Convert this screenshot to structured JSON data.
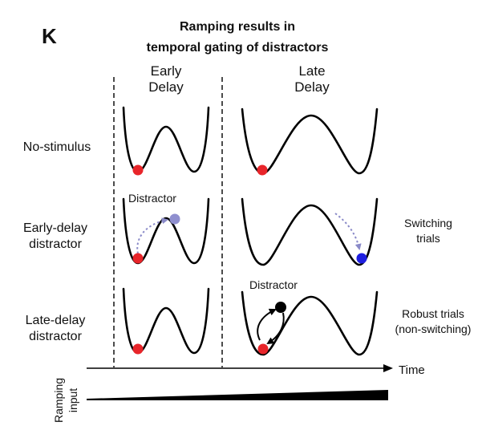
{
  "panel_letter": "K",
  "title": {
    "line1": "Ramping results in",
    "line2": "temporal gating of distractors"
  },
  "columns": {
    "early": {
      "line1": "Early",
      "line2": "Delay"
    },
    "late": {
      "line1": "Late",
      "line2": "Delay"
    }
  },
  "rows": {
    "no_stimulus": {
      "line1": "No-stimulus"
    },
    "early_distractor": {
      "line1": "Early-delay",
      "line2": "distractor"
    },
    "late_distractor": {
      "line1": "Late-delay",
      "line2": "distractor"
    }
  },
  "annotations": {
    "distractor_early": "Distractor",
    "distractor_late": "Distractor"
  },
  "outcomes": {
    "switching": {
      "line1": "Switching",
      "line2": "trials"
    },
    "robust": {
      "line1": "Robust trials",
      "line2": "(non-switching)"
    }
  },
  "time_axis": {
    "label": "Time"
  },
  "ramping_input": {
    "line1": "Ramping",
    "line2": "input"
  },
  "colors": {
    "red_ball": "#e8252a",
    "faded_ball": "#8f8fcf",
    "blue_ball": "#1f1fe0",
    "black_ball": "#000000",
    "dotted_arrow": "#8a8ac8",
    "ramp_fill": "#000000"
  }
}
